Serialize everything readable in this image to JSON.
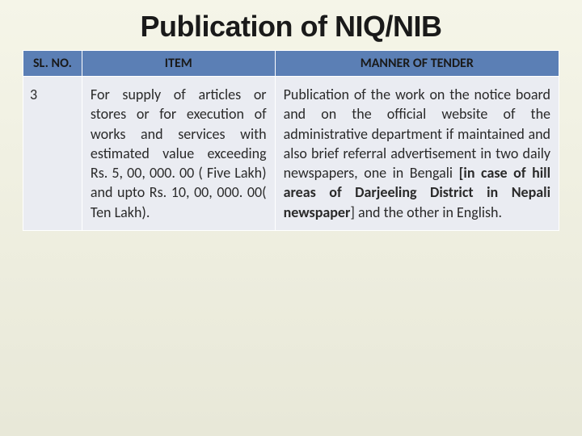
{
  "title": "Publication of NIQ/NIB",
  "table": {
    "header_bg": "#5b7fb5",
    "cell_bg": "#eaecf2",
    "border_color": "#ffffff",
    "columns": [
      {
        "label": "SL. NO.",
        "width": "11%"
      },
      {
        "label": "ITEM",
        "width": "36%"
      },
      {
        "label": "MANNER OF TENDER",
        "width": "53%"
      }
    ],
    "rows": [
      {
        "slno": "3",
        "item": "For supply of articles or stores or for execution of works and services with estimated value exceeding Rs. 5, 00, 000. 00 ( Five Lakh) and upto Rs. 10, 00, 000. 00( Ten Lakh).",
        "manner_pre": "Publication of the work on the notice board and on the official website of the administrative department if maintained and also brief referral advertisement in two daily newspapers, one in Bengali ",
        "manner_bold": "[in case of hill areas of Darjeeling District in Nepali newspaper",
        "manner_post": "] and the other in English."
      }
    ]
  },
  "fonts": {
    "title_size": 36,
    "header_size": 16,
    "body_size": 18
  },
  "colors": {
    "slide_bg_top": "#f5f5e8",
    "slide_bg_bottom": "#e8e8d8",
    "title_color": "#1a1a1a",
    "text_color": "#2a2a2a"
  }
}
